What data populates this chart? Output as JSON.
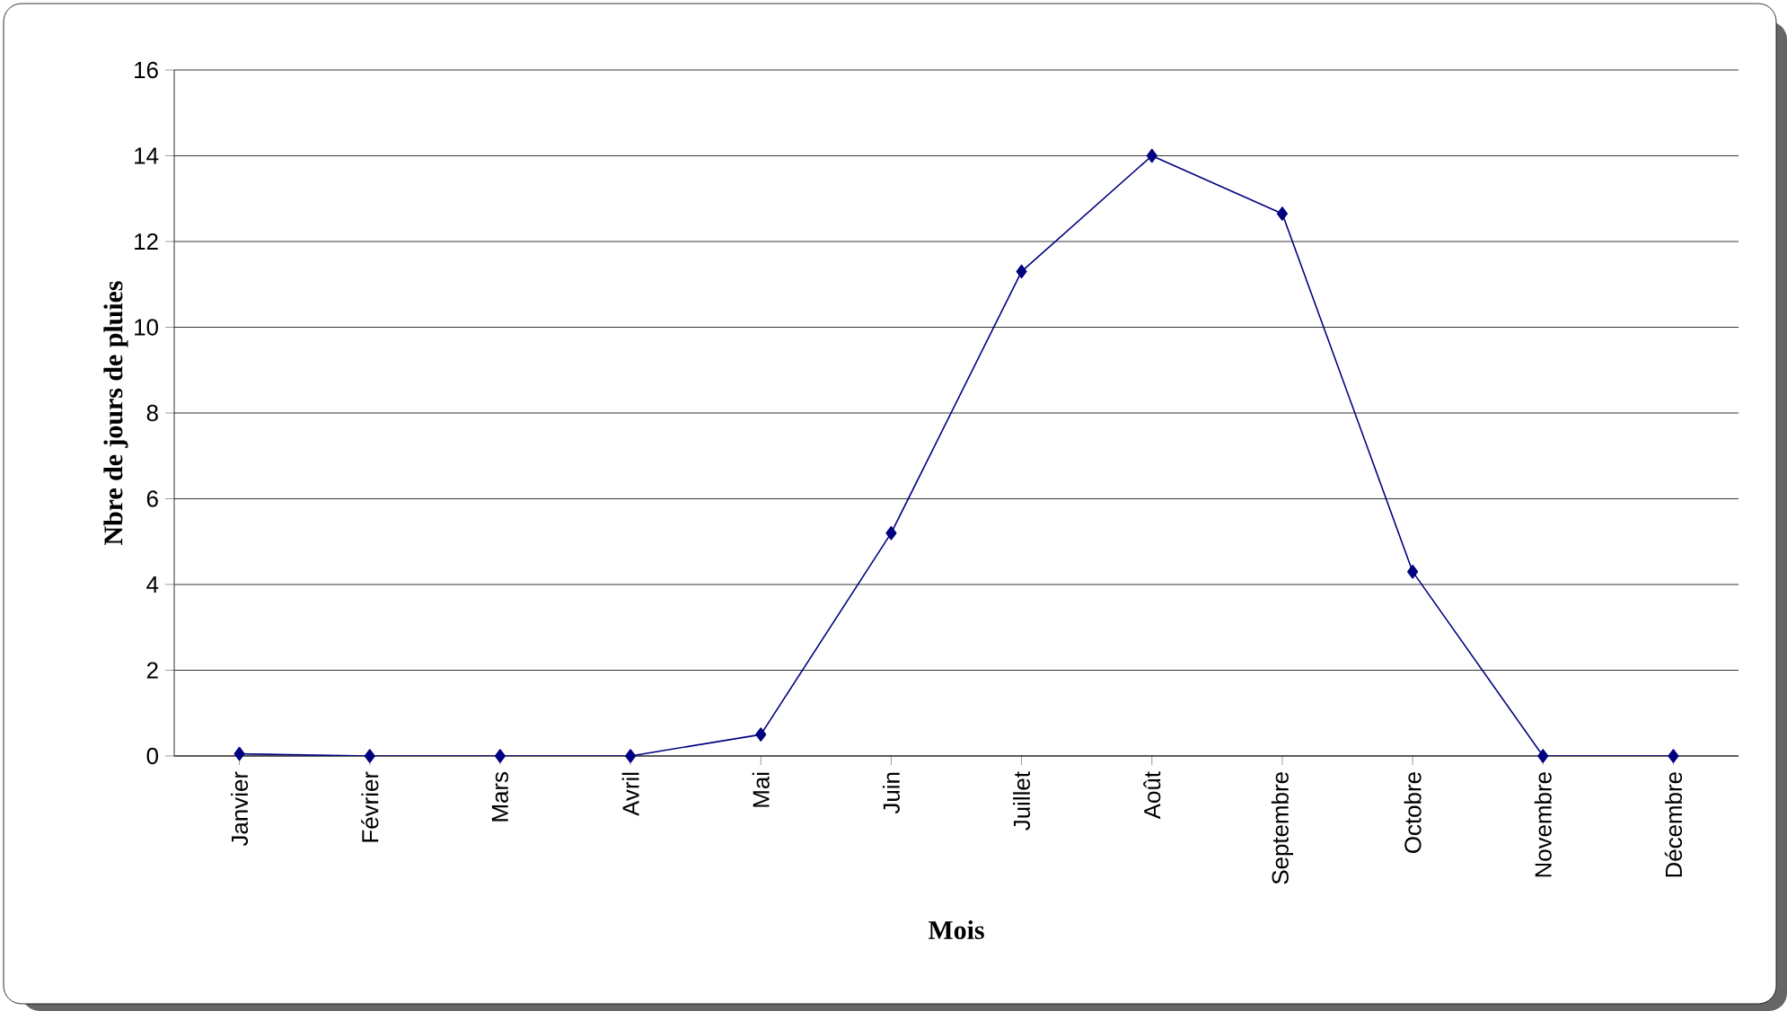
{
  "chart_data": {
    "type": "line",
    "xlabel": "Mois",
    "ylabel": "Nbre de jours de pluies",
    "categories": [
      "Janvier",
      "Février",
      "Mars",
      "Avril",
      "Mai",
      "Juin",
      "Juillet",
      "Août",
      "Septembre",
      "Octobre",
      "Novembre",
      "Décembre"
    ],
    "series": [
      {
        "color": "#000080",
        "values": [
          0.05,
          0,
          0,
          0,
          0.5,
          5.2,
          11.3,
          14,
          12.65,
          4.3,
          0,
          0
        ]
      }
    ],
    "ylim": [
      0,
      16
    ],
    "yticks": [
      0,
      2,
      4,
      6,
      8,
      10,
      12,
      14,
      16
    ],
    "grid": "y",
    "marker": "diamond",
    "line_style": "solid"
  }
}
